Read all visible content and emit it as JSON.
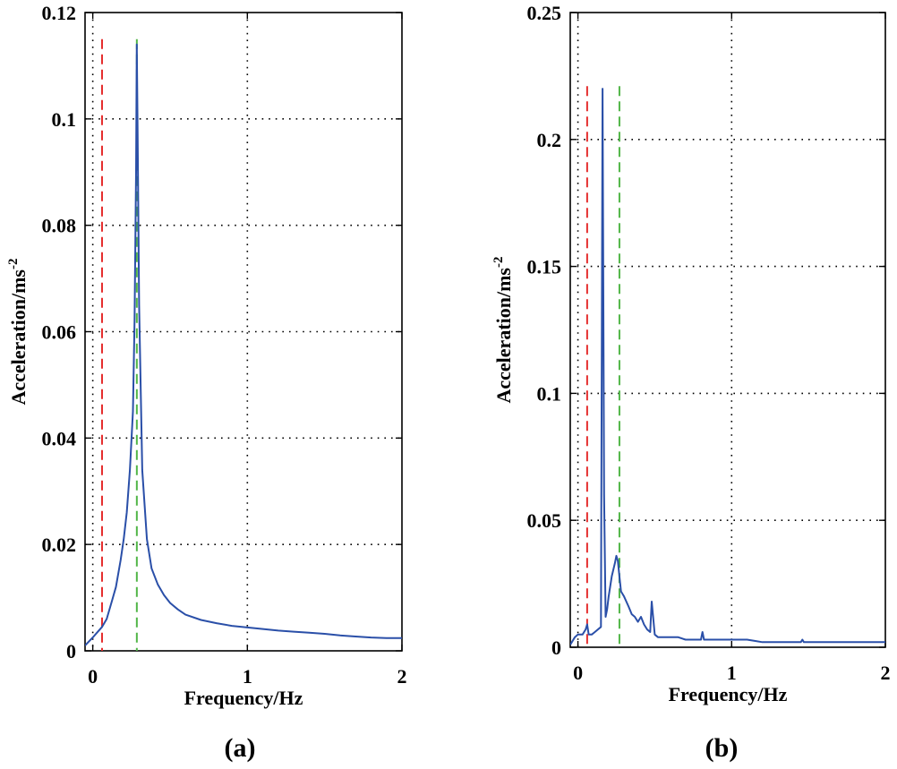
{
  "figure": {
    "panels": [
      {
        "panel_label": "(a)",
        "panel_letter": "a"
      },
      {
        "panel_label": "(b)",
        "panel_letter": "b"
      }
    ]
  },
  "chart_data": [
    {
      "type": "line",
      "panel": "(a)",
      "title": "",
      "xlabel": "Frequency/Hz",
      "ylabel": "Acceleration/ms",
      "ylabel_superscript": "-2",
      "xlim": [
        -0.05,
        2
      ],
      "ylim": [
        0,
        0.12
      ],
      "xticks": [
        0,
        1,
        2
      ],
      "xtick_labels": [
        "0",
        "1",
        "2"
      ],
      "yticks": [
        0,
        0.02,
        0.04,
        0.06,
        0.08,
        0.1,
        0.12
      ],
      "ytick_labels": [
        "0",
        "0.02",
        "0.04",
        "0.06",
        "0.08",
        "0.1",
        "0.12"
      ],
      "grid": true,
      "series": [
        {
          "name": "acceleration spectrum",
          "color": "#2a4fa8",
          "x": [
            -0.05,
            0.0,
            0.03,
            0.06,
            0.09,
            0.12,
            0.15,
            0.18,
            0.2,
            0.22,
            0.24,
            0.26,
            0.27,
            0.28,
            0.285,
            0.29,
            0.3,
            0.32,
            0.35,
            0.38,
            0.42,
            0.46,
            0.5,
            0.55,
            0.6,
            0.7,
            0.8,
            0.9,
            1.0,
            1.1,
            1.2,
            1.3,
            1.4,
            1.5,
            1.6,
            1.7,
            1.8,
            1.9,
            2.0
          ],
          "y": [
            0.001,
            0.0025,
            0.0035,
            0.0045,
            0.006,
            0.009,
            0.012,
            0.017,
            0.021,
            0.026,
            0.034,
            0.045,
            0.062,
            0.09,
            0.114,
            0.098,
            0.065,
            0.034,
            0.021,
            0.0155,
            0.0125,
            0.0105,
            0.009,
            0.0078,
            0.0068,
            0.0058,
            0.0052,
            0.0047,
            0.0044,
            0.0041,
            0.0038,
            0.0036,
            0.0034,
            0.0032,
            0.0029,
            0.0027,
            0.0025,
            0.0024,
            0.0024
          ]
        }
      ],
      "reference_lines": [
        {
          "name": "red dashed marker",
          "x": 0.06,
          "color": "#e52e2e",
          "y_top": 0.115
        },
        {
          "name": "green dashed marker",
          "x": 0.285,
          "color": "#52b648",
          "y_top": 0.115
        }
      ]
    },
    {
      "type": "line",
      "panel": "(b)",
      "title": "",
      "xlabel": "Frequency/Hz",
      "ylabel": "Acceleration/ms",
      "ylabel_superscript": "-2",
      "xlim": [
        -0.05,
        2
      ],
      "ylim": [
        0,
        0.25
      ],
      "xticks": [
        0,
        1,
        2
      ],
      "xtick_labels": [
        "0",
        "1",
        "2"
      ],
      "yticks": [
        0,
        0.05,
        0.1,
        0.15,
        0.2,
        0.25
      ],
      "ytick_labels": [
        "0",
        "0.05",
        "0.1",
        "0.15",
        "0.2",
        "0.25"
      ],
      "grid": true,
      "series": [
        {
          "name": "acceleration spectrum",
          "color": "#2a4fa8",
          "x": [
            -0.05,
            -0.02,
            0.0,
            0.03,
            0.05,
            0.06,
            0.07,
            0.09,
            0.11,
            0.13,
            0.15,
            0.16,
            0.17,
            0.18,
            0.19,
            0.2,
            0.22,
            0.24,
            0.25,
            0.26,
            0.27,
            0.28,
            0.3,
            0.33,
            0.35,
            0.37,
            0.39,
            0.41,
            0.43,
            0.45,
            0.47,
            0.48,
            0.5,
            0.52,
            0.55,
            0.6,
            0.65,
            0.7,
            0.75,
            0.8,
            0.81,
            0.82,
            0.85,
            0.9,
            1.0,
            1.1,
            1.15,
            1.2,
            1.3,
            1.4,
            1.45,
            1.46,
            1.47,
            1.5,
            1.6,
            1.7,
            1.8,
            1.9,
            2.0
          ],
          "y": [
            0.001,
            0.004,
            0.005,
            0.005,
            0.007,
            0.009,
            0.005,
            0.005,
            0.006,
            0.007,
            0.008,
            0.22,
            0.06,
            0.012,
            0.015,
            0.02,
            0.028,
            0.033,
            0.036,
            0.034,
            0.028,
            0.022,
            0.02,
            0.016,
            0.013,
            0.012,
            0.01,
            0.012,
            0.009,
            0.007,
            0.006,
            0.018,
            0.005,
            0.004,
            0.004,
            0.004,
            0.004,
            0.003,
            0.003,
            0.003,
            0.006,
            0.003,
            0.003,
            0.003,
            0.003,
            0.003,
            0.0025,
            0.002,
            0.002,
            0.002,
            0.002,
            0.003,
            0.002,
            0.002,
            0.002,
            0.002,
            0.002,
            0.002,
            0.002
          ]
        }
      ],
      "reference_lines": [
        {
          "name": "red dashed marker",
          "x": 0.06,
          "color": "#e52e2e",
          "y_top": 0.221
        },
        {
          "name": "green dashed marker",
          "x": 0.27,
          "color": "#52b648",
          "y_top": 0.221
        }
      ]
    }
  ]
}
